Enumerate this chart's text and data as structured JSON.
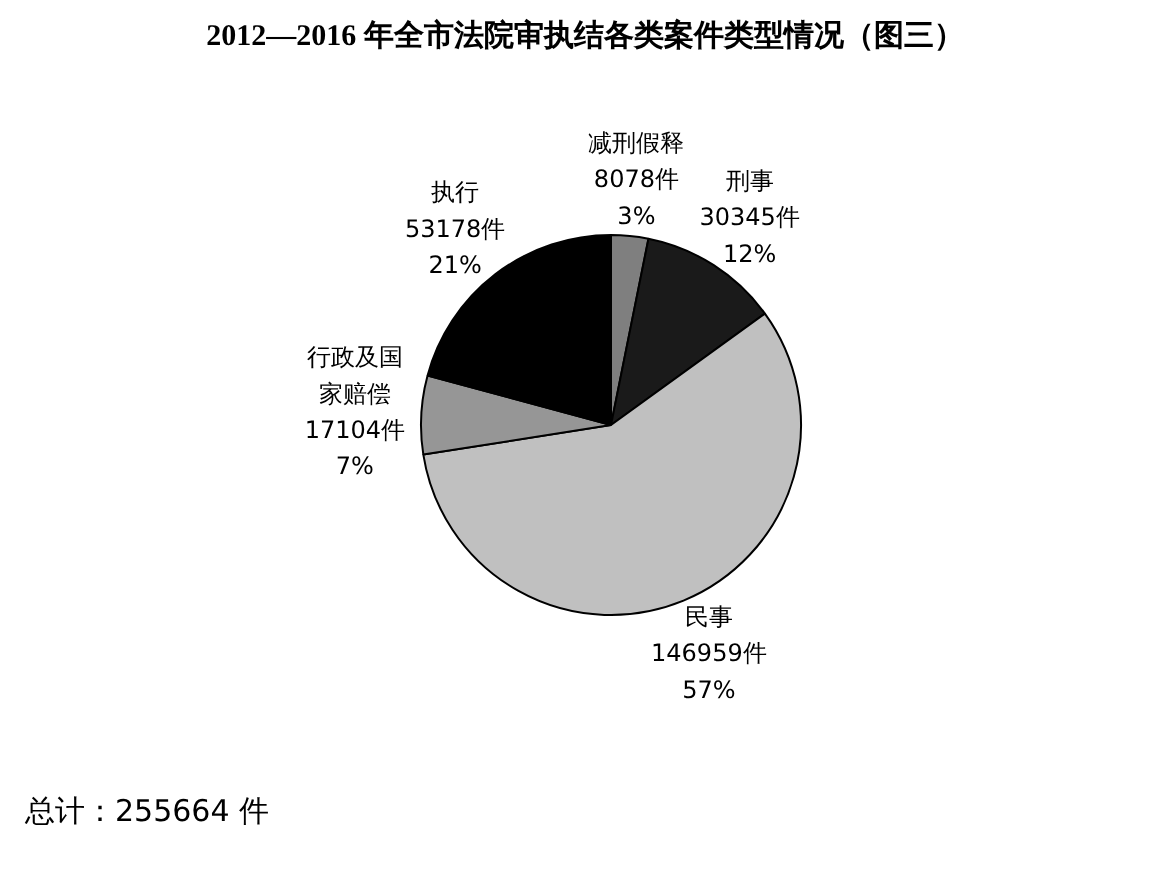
{
  "chart_data": {
    "type": "pie",
    "title": "2012—2016 年全市法院审执结各类案件类型情况（图三）",
    "categories": [
      "减刑假释",
      "刑事",
      "民事",
      "行政及国家赔偿",
      "执行"
    ],
    "values": [
      8078,
      30345,
      146959,
      17104,
      53178
    ],
    "value_labels": [
      "8078件\n3%",
      "30345件\n12%",
      "146959件\n57%",
      "17104件\n7%",
      "53178件\n21%"
    ],
    "colors": [
      "#7f7f7f",
      "#1a1a1a",
      "#c0c0c0",
      "#969696",
      "#000000"
    ],
    "annotations": [
      "总计：255664 件"
    ]
  }
}
